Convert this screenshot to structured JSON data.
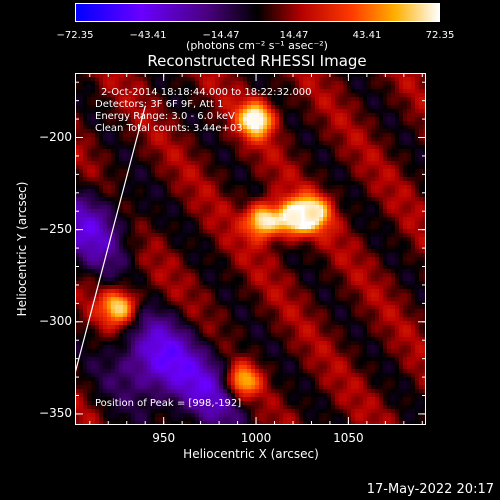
{
  "colorbar": {
    "ticks": [
      "−72.35",
      "−43.41",
      "−14.47",
      "14.47",
      "43.41",
      "72.35"
    ],
    "units": "(photons cm⁻² s⁻¹ asec⁻²)",
    "min": -72.35,
    "max": 72.35
  },
  "chart_data": {
    "type": "heatmap",
    "title": "Reconstructed RHESSI Image",
    "xlabel": "Heliocentric X (arcsec)",
    "ylabel": "Heliocentric Y (arcsec)",
    "xlim": [
      902,
      1092
    ],
    "ylim": [
      -356,
      -165
    ],
    "x_ticks": [
      950,
      1000,
      1050
    ],
    "x_tick_labels": [
      "950",
      "1000",
      "1050"
    ],
    "y_ticks": [
      -200,
      -250,
      -300,
      -350
    ],
    "y_tick_labels": [
      "−200",
      "−250",
      "−300",
      "−350"
    ],
    "colormap": "blue-purple-black-red-orange-yellow-white",
    "limb_line": {
      "x": [
        902,
        940
      ],
      "y": [
        -328,
        -183
      ]
    },
    "peak": {
      "x": 998,
      "y": -192
    },
    "bright_sources": [
      {
        "x": 1000,
        "y": -190,
        "value": 70
      },
      {
        "x": 1004,
        "y": -245,
        "value": 68
      },
      {
        "x": 1020,
        "y": -244,
        "value": 66
      },
      {
        "x": 1031,
        "y": -241,
        "value": 60
      },
      {
        "x": 926,
        "y": -292,
        "value": 62
      },
      {
        "x": 993,
        "y": -332,
        "value": 55
      }
    ],
    "negative_regions": [
      {
        "x": 910,
        "y": -250,
        "value": -40
      },
      {
        "x": 945,
        "y": -320,
        "value": -50
      },
      {
        "x": 975,
        "y": -338,
        "value": -35
      }
    ]
  },
  "info": {
    "time_range": "2-Oct-2014 18:18:44.000 to 18:22:32.000",
    "detectors": "Detectors: 3F 6F 9F, Att 1",
    "energy": "Energy Range: 3.0 - 6.0 keV",
    "clean": "Clean      Total counts: 3.44e+03",
    "peak_position": "Position of Peak = [998,-192]"
  },
  "footer": {
    "date": "17-May-2022 20:17"
  }
}
